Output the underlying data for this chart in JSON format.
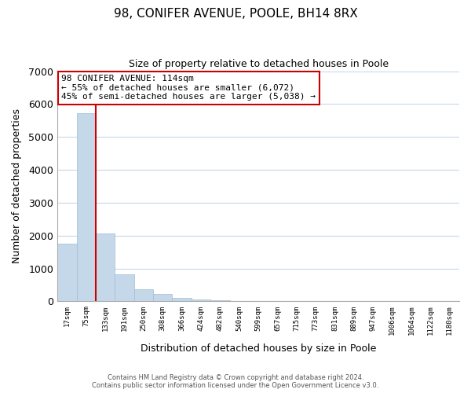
{
  "title": "98, CONIFER AVENUE, POOLE, BH14 8RX",
  "subtitle": "Size of property relative to detached houses in Poole",
  "xlabel": "Distribution of detached houses by size in Poole",
  "ylabel": "Number of detached properties",
  "bar_color": "#c5d8ea",
  "bar_edge_color": "#a0bcd4",
  "grid_color": "#c8d8e8",
  "background_color": "#ffffff",
  "tick_labels": [
    "17sqm",
    "75sqm",
    "133sqm",
    "191sqm",
    "250sqm",
    "308sqm",
    "366sqm",
    "424sqm",
    "482sqm",
    "540sqm",
    "599sqm",
    "657sqm",
    "715sqm",
    "773sqm",
    "831sqm",
    "889sqm",
    "947sqm",
    "1006sqm",
    "1064sqm",
    "1122sqm",
    "1180sqm"
  ],
  "bar_values": [
    1750,
    5720,
    2060,
    830,
    365,
    220,
    100,
    60,
    30,
    15,
    5,
    0,
    0,
    0,
    0,
    0,
    0,
    0,
    0,
    0,
    0
  ],
  "ylim": [
    0,
    7000
  ],
  "yticks": [
    0,
    1000,
    2000,
    3000,
    4000,
    5000,
    6000,
    7000
  ],
  "property_line_color": "#cc0000",
  "annotation_text_line1": "98 CONIFER AVENUE: 114sqm",
  "annotation_text_line2": "← 55% of detached houses are smaller (6,072)",
  "annotation_text_line3": "45% of semi-detached houses are larger (5,038) →",
  "annotation_box_color": "#ffffff",
  "annotation_box_edge": "#cc0000",
  "footer_line1": "Contains HM Land Registry data © Crown copyright and database right 2024.",
  "footer_line2": "Contains public sector information licensed under the Open Government Licence v3.0."
}
